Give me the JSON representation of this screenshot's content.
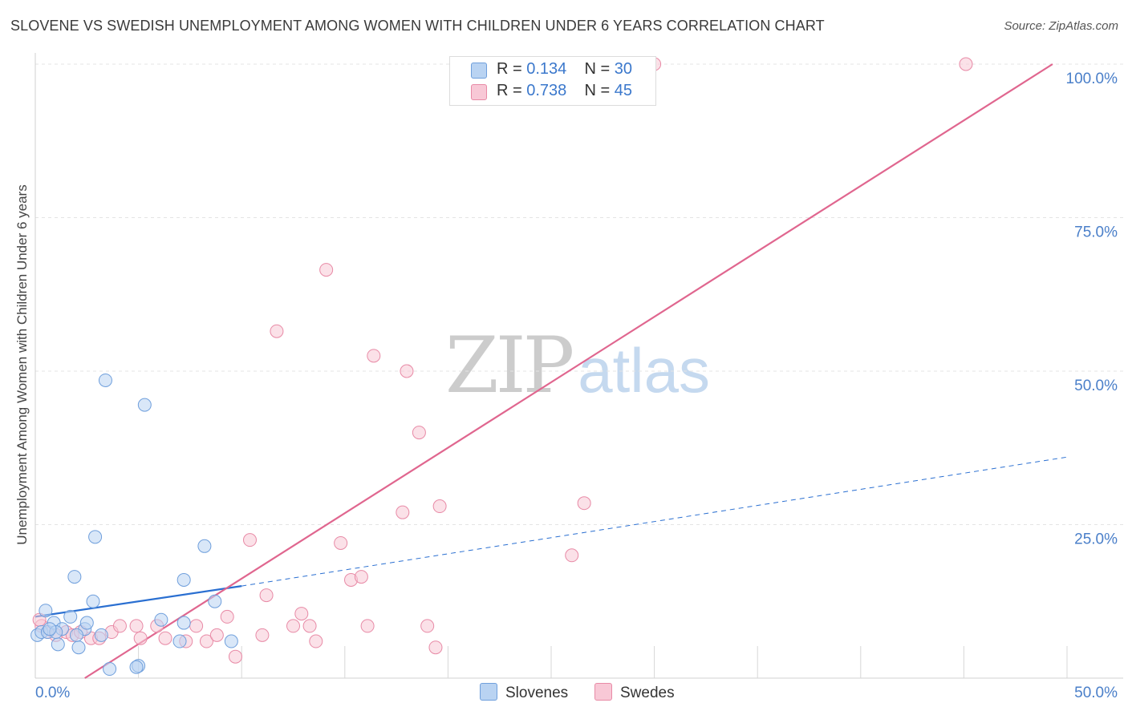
{
  "header": {
    "title": "SLOVENE VS SWEDISH UNEMPLOYMENT AMONG WOMEN WITH CHILDREN UNDER 6 YEARS CORRELATION CHART",
    "source": "Source: ZipAtlas.com"
  },
  "watermark": {
    "zip": "ZIP",
    "atlas": "atlas"
  },
  "legend": {
    "rows": [
      {
        "r_label": "R = ",
        "r_value": "0.134",
        "n_label": "N = ",
        "n_value": "30"
      },
      {
        "r_label": "R = ",
        "r_value": "0.738",
        "n_label": "N = ",
        "n_value": "45"
      }
    ]
  },
  "bottom_legend": {
    "slovenes": "Slovenes",
    "swedes": "Swedes"
  },
  "colors": {
    "slovenes_fill": "#b9d3f2",
    "slovenes_stroke": "#6f9fdc",
    "slovenes_line": "#2a6fd1",
    "swedes_fill": "#f8c8d6",
    "swedes_stroke": "#e88aa6",
    "swedes_line": "#e0668f",
    "grid": "#e4e4e4",
    "tick_text": "#4a7fc9"
  },
  "chart_data": {
    "type": "scatter",
    "title": "SLOVENE VS SWEDISH UNEMPLOYMENT AMONG WOMEN WITH CHILDREN UNDER 6 YEARS CORRELATION CHART",
    "xlabel": "",
    "ylabel": "Unemployment Among Women with Children Under 6 years",
    "xlim": [
      0,
      50
    ],
    "ylim": [
      0,
      100
    ],
    "x_tick_labels": [
      "0.0%",
      "50.0%"
    ],
    "y_ticks": [
      25,
      50,
      75,
      100
    ],
    "y_tick_labels": [
      "25.0%",
      "50.0%",
      "75.0%",
      "100.0%"
    ],
    "series": [
      {
        "name": "Slovenes",
        "R": 0.134,
        "N": 30,
        "points": [
          [
            0.1,
            7.0
          ],
          [
            0.3,
            7.5
          ],
          [
            0.5,
            11.0
          ],
          [
            0.6,
            7.5
          ],
          [
            0.9,
            9.0
          ],
          [
            1.1,
            5.5
          ],
          [
            1.3,
            8.0
          ],
          [
            1.7,
            10.0
          ],
          [
            1.9,
            16.5
          ],
          [
            2.1,
            5.0
          ],
          [
            2.4,
            8.0
          ],
          [
            2.5,
            9.0
          ],
          [
            2.8,
            12.5
          ],
          [
            2.9,
            23.0
          ],
          [
            3.2,
            7.0
          ],
          [
            3.4,
            48.5
          ],
          [
            3.6,
            1.5
          ],
          [
            5.0,
            2.0
          ],
          [
            5.3,
            44.5
          ],
          [
            6.1,
            9.5
          ],
          [
            7.2,
            9.0
          ],
          [
            7.0,
            6.0
          ],
          [
            7.2,
            16.0
          ],
          [
            8.2,
            21.5
          ],
          [
            8.7,
            12.5
          ],
          [
            9.5,
            6.0
          ],
          [
            1.0,
            7.5
          ],
          [
            0.7,
            8.0
          ],
          [
            4.9,
            1.8
          ],
          [
            2.0,
            7.0
          ]
        ],
        "trend": {
          "solid": [
            [
              0,
              10.0
            ],
            [
              10.0,
              15.0
            ]
          ],
          "dashed_to": [
            50,
            36.0
          ]
        }
      },
      {
        "name": "Swedes",
        "R": 0.738,
        "N": 45,
        "points": [
          [
            0.3,
            8.5
          ],
          [
            0.6,
            7.5
          ],
          [
            1.0,
            7.0
          ],
          [
            1.5,
            7.5
          ],
          [
            1.8,
            7.0
          ],
          [
            2.2,
            7.5
          ],
          [
            2.7,
            6.5
          ],
          [
            3.1,
            6.5
          ],
          [
            3.7,
            7.5
          ],
          [
            4.1,
            8.5
          ],
          [
            4.9,
            8.5
          ],
          [
            5.1,
            6.5
          ],
          [
            5.9,
            8.5
          ],
          [
            6.3,
            6.5
          ],
          [
            7.3,
            6.0
          ],
          [
            7.8,
            8.5
          ],
          [
            8.3,
            6.0
          ],
          [
            8.8,
            7.0
          ],
          [
            9.3,
            10.0
          ],
          [
            9.7,
            3.5
          ],
          [
            10.4,
            22.5
          ],
          [
            11.0,
            7.0
          ],
          [
            11.2,
            13.5
          ],
          [
            11.7,
            56.5
          ],
          [
            12.5,
            8.5
          ],
          [
            12.9,
            10.5
          ],
          [
            13.3,
            8.5
          ],
          [
            13.6,
            6.0
          ],
          [
            14.1,
            66.5
          ],
          [
            14.8,
            22.0
          ],
          [
            15.3,
            16.0
          ],
          [
            15.8,
            16.5
          ],
          [
            16.1,
            8.5
          ],
          [
            16.4,
            52.5
          ],
          [
            17.8,
            27.0
          ],
          [
            18.0,
            50.0
          ],
          [
            18.6,
            40.0
          ],
          [
            19.0,
            8.5
          ],
          [
            19.4,
            5.0
          ],
          [
            19.6,
            28.0
          ],
          [
            26.0,
            20.0
          ],
          [
            26.6,
            28.5
          ],
          [
            30.0,
            100.0
          ],
          [
            45.1,
            100.0
          ],
          [
            0.2,
            9.5
          ]
        ],
        "trend": {
          "solid": [
            [
              2.4,
              0.0
            ],
            [
              49.3,
              100.0
            ]
          ]
        }
      }
    ]
  }
}
